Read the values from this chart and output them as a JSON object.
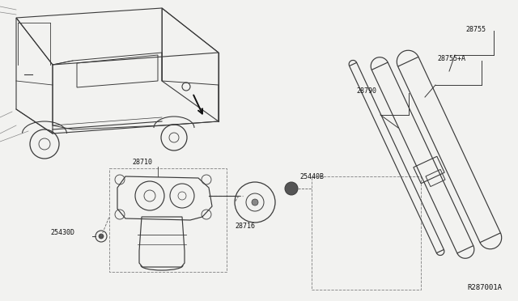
{
  "bg_color": "#f2f2f0",
  "line_color": "#3a3a3a",
  "dash_color": "#666666",
  "text_color": "#111111",
  "diagram_ref": "R287001A",
  "label_fs": 6.0,
  "parts": {
    "28755": {
      "label": "28755"
    },
    "28755A": {
      "label": "28755+A"
    },
    "28790": {
      "label": "28790"
    },
    "28710": {
      "label": "28710"
    },
    "28716": {
      "label": "28716"
    },
    "25440B": {
      "label": "25440B"
    },
    "25430D": {
      "label": "25430D"
    }
  }
}
